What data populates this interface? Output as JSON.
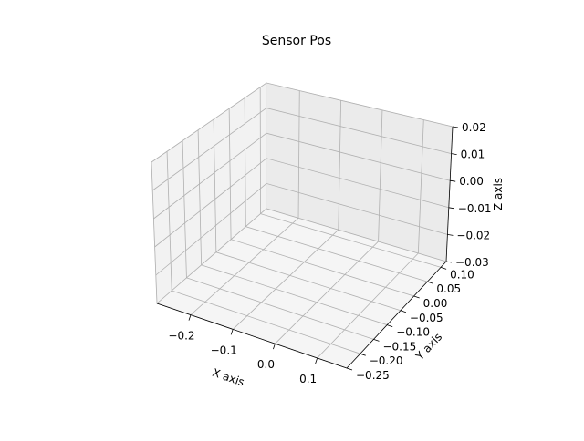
{
  "chart_data": {
    "type": "scatter",
    "projection": "3d",
    "title": "Sensor Pos",
    "xlabel": "X axis",
    "ylabel": "Y axis",
    "zlabel": "Z axis",
    "xlim": [
      -0.28,
      0.17
    ],
    "ylim": [
      -0.25,
      0.12
    ],
    "zlim": [
      -0.03,
      0.02
    ],
    "xticks": [
      "−0.2",
      "−0.1",
      "0.0",
      "0.1"
    ],
    "yticks": [
      "−0.25",
      "−0.20",
      "−0.15",
      "−0.10",
      "−0.05",
      "0.00",
      "0.05",
      "0.10"
    ],
    "zticks": [
      "−0.03",
      "−0.02",
      "−0.01",
      "0.00",
      "0.01",
      "0.02"
    ],
    "grid": true,
    "series": []
  }
}
